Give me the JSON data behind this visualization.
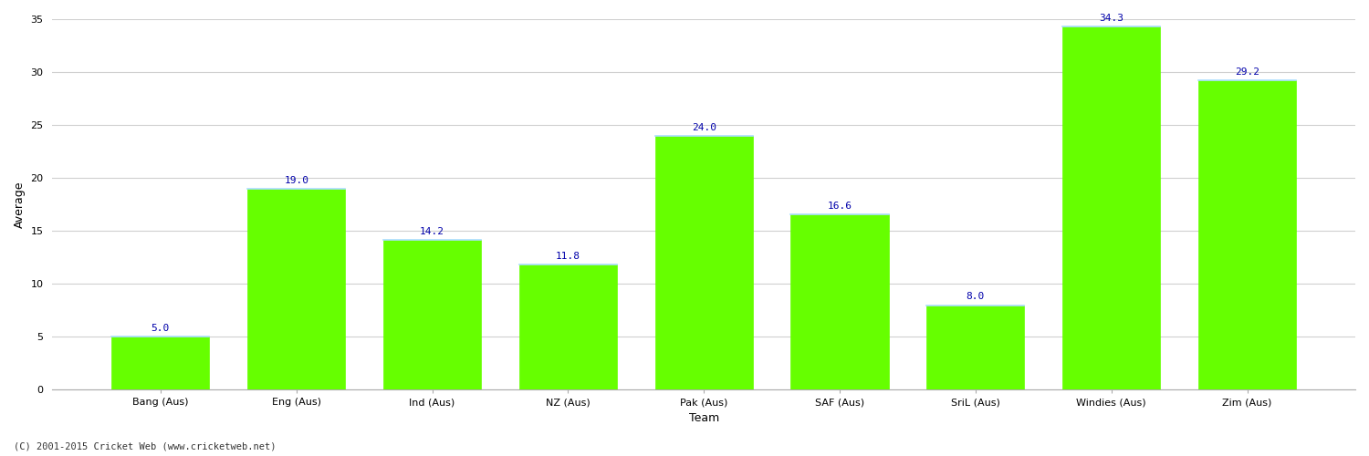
{
  "categories": [
    "Bang (Aus)",
    "Eng (Aus)",
    "Ind (Aus)",
    "NZ (Aus)",
    "Pak (Aus)",
    "SAF (Aus)",
    "SriL (Aus)",
    "Windies (Aus)",
    "Zim (Aus)"
  ],
  "values": [
    5.0,
    19.0,
    14.2,
    11.8,
    24.0,
    16.6,
    8.0,
    34.3,
    29.2
  ],
  "bar_color": "#66ff00",
  "bar_top_edge_color": "#aaddff",
  "bar_edge_color": "#66ff00",
  "value_color": "#0000aa",
  "xlabel": "Team",
  "ylabel": "Average",
  "ylim": [
    0,
    35
  ],
  "yticks": [
    0,
    5,
    10,
    15,
    20,
    25,
    30,
    35
  ],
  "grid_color": "#d0d0d0",
  "bg_color": "#ffffff",
  "footer": "(C) 2001-2015 Cricket Web (www.cricketweb.net)",
  "label_fontsize": 9,
  "tick_fontsize": 8,
  "value_fontsize": 8,
  "bar_width": 0.72
}
